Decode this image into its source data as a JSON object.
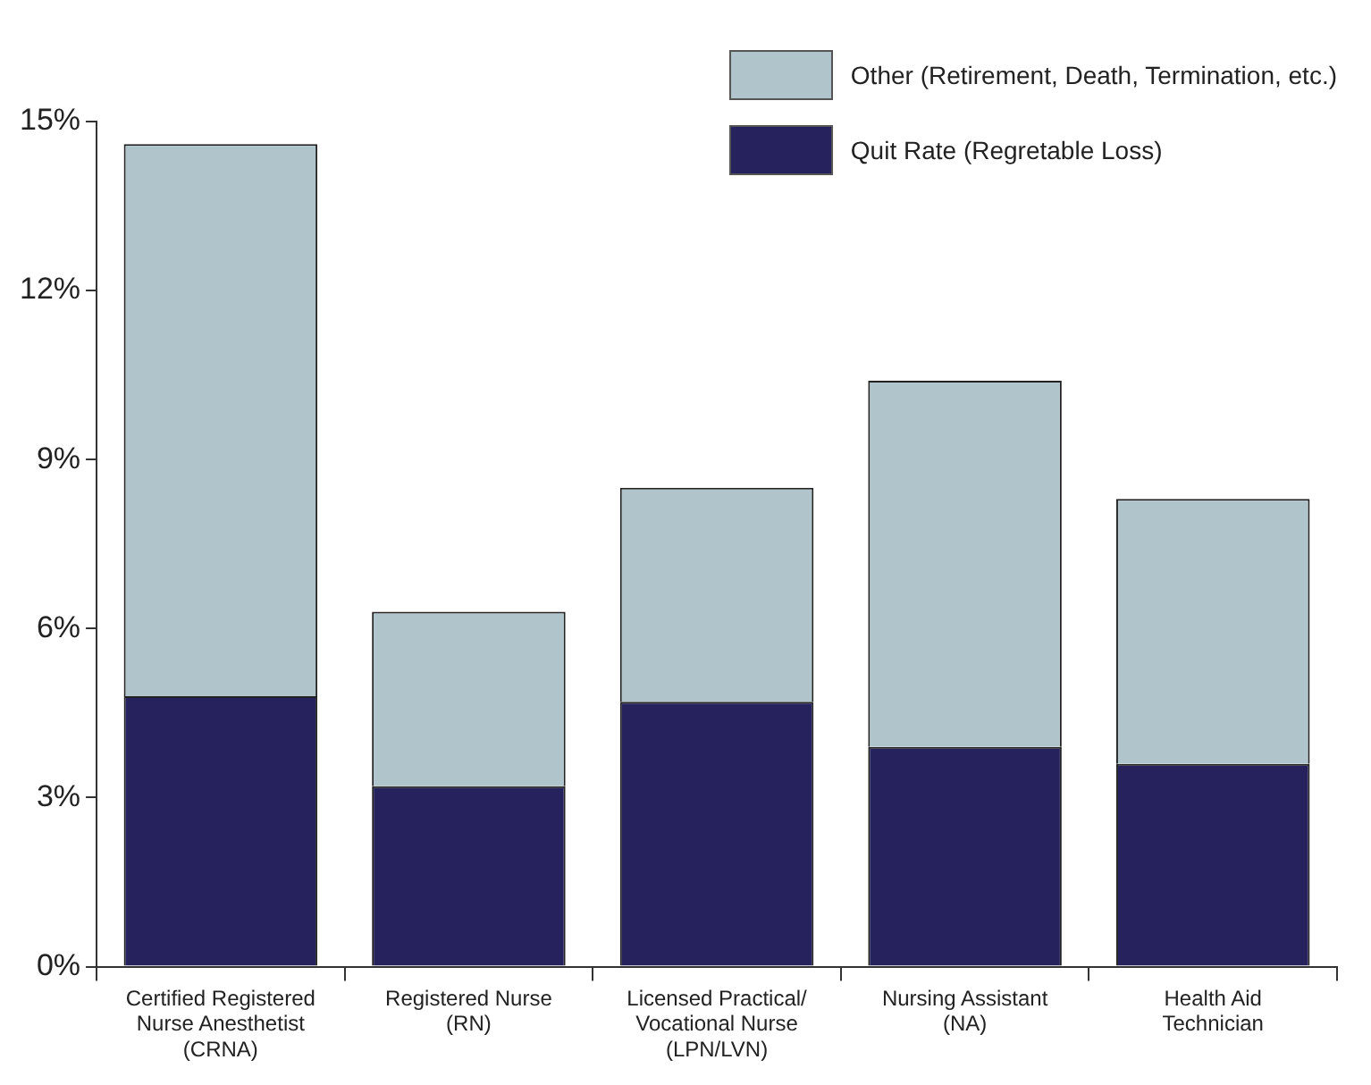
{
  "chart_data": {
    "type": "bar",
    "stacked": true,
    "categories": [
      "Certified Registered Nurse Anesthetist (CRNA)",
      "Registered Nurse (RN)",
      "Licensed Practical/ Vocational Nurse (LPN/LVN)",
      "Nursing Assistant (NA)",
      "Health Aid Technician"
    ],
    "series": [
      {
        "name": "Quit Rate (Regretable Loss)",
        "color": "#26225e",
        "values": [
          4.8,
          3.2,
          4.7,
          3.9,
          3.6
        ]
      },
      {
        "name": "Other (Retirement, Death, Termination, etc.)",
        "color": "#b0c4cc",
        "values": [
          9.8,
          3.1,
          3.8,
          6.5,
          4.7
        ]
      }
    ],
    "ylim": [
      0,
      15
    ],
    "yticks": [
      {
        "value": 0,
        "label": "0%"
      },
      {
        "value": 3,
        "label": "3%"
      },
      {
        "value": 6,
        "label": "6%"
      },
      {
        "value": 9,
        "label": "9%"
      },
      {
        "value": 12,
        "label": "12%"
      },
      {
        "value": 15,
        "label": "15%"
      }
    ],
    "grid": false,
    "legend": "top right"
  }
}
